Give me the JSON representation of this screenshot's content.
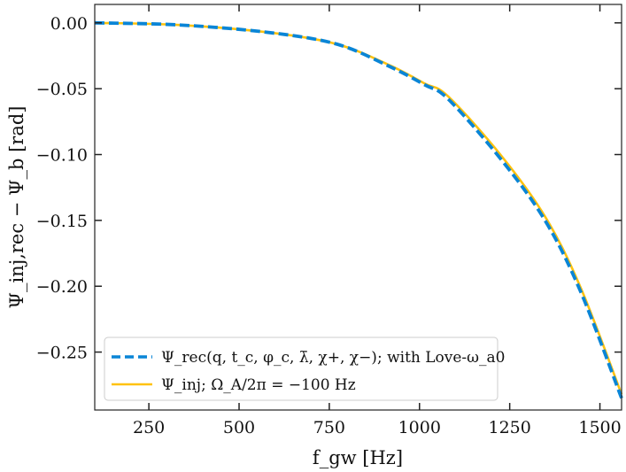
{
  "chart_data": {
    "type": "line",
    "title": "",
    "xlabel": "f_gw [Hz]",
    "ylabel": "Ψ_inj,rec − Ψ_b [rad]",
    "xlim": [
      100,
      1560
    ],
    "ylim": [
      -0.294,
      0.014
    ],
    "xticks": [
      250,
      500,
      750,
      1000,
      1250,
      1500
    ],
    "xtick_labels": [
      "250",
      "500",
      "750",
      "1000",
      "1250",
      "1500"
    ],
    "yticks": [
      0.0,
      -0.05,
      -0.1,
      -0.15,
      -0.2,
      -0.25
    ],
    "ytick_labels": [
      "0.00",
      "−0.05",
      "−0.10",
      "−0.15",
      "−0.20",
      "−0.25"
    ],
    "grid": false,
    "legend_position": "lower-left",
    "series": [
      {
        "name": "Ψ_rec(q, t_c, φ_c, λ̄, χ+, χ−); with Love-ω_a0",
        "color": "#0a85d6",
        "style": "dashed",
        "x": [
          100,
          328,
          573,
          769,
          916,
          1014,
          1080,
          1227,
          1350,
          1448,
          1560
        ],
        "y": [
          0.0,
          -0.0015,
          -0.007,
          -0.016,
          -0.033,
          -0.047,
          -0.058,
          -0.104,
          -0.151,
          -0.205,
          -0.285
        ]
      },
      {
        "name": "Ψ_inj; Ω_A/2π = −100 Hz",
        "color": "#ffc20e",
        "style": "solid",
        "x": [
          100,
          328,
          573,
          769,
          916,
          1014,
          1080,
          1227,
          1350,
          1448,
          1560
        ],
        "y": [
          0.0,
          -0.0015,
          -0.007,
          -0.016,
          -0.032,
          -0.046,
          -0.056,
          -0.101,
          -0.148,
          -0.202,
          -0.282
        ]
      }
    ]
  }
}
